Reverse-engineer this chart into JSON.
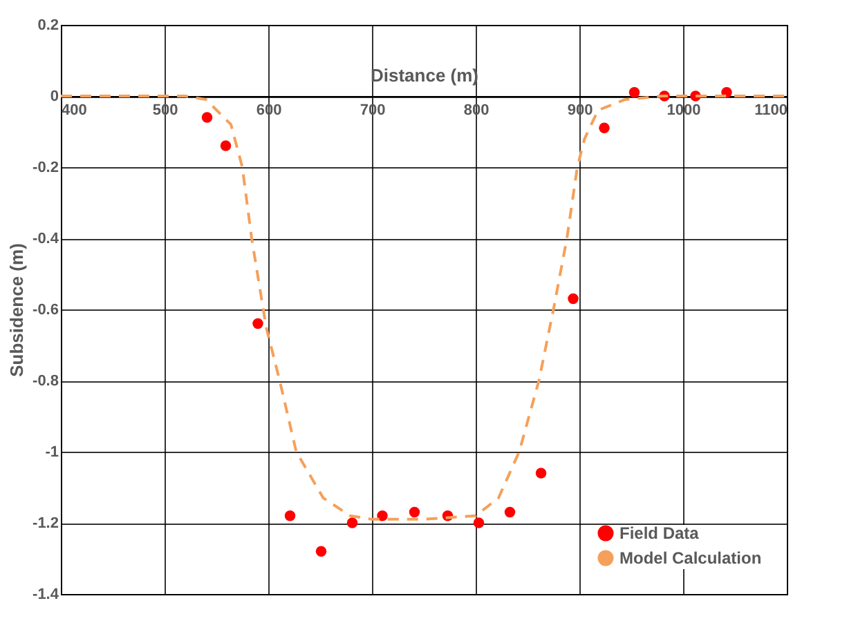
{
  "chart_data": {
    "type": "scatter",
    "xlabel": "Distance (m)",
    "ylabel": "Subsidence (m)",
    "xlim": [
      400,
      1100
    ],
    "xticks": [
      400,
      500,
      600,
      700,
      800,
      900,
      1000,
      1100
    ],
    "ylim": [
      -1.4,
      0.2
    ],
    "yticks": [
      -1.4,
      -1.2,
      -1,
      -0.8,
      -0.6,
      -0.4,
      -0.2,
      0,
      0.2
    ],
    "grid": true,
    "legend": "bottom right",
    "series": [
      {
        "name": "Field Data",
        "marker": "circle",
        "color": "#ff0000",
        "x": [
          541,
          559,
          590,
          621,
          651,
          681,
          710,
          741,
          773,
          803,
          833,
          863,
          894,
          924,
          953,
          982,
          1012,
          1042
        ],
        "values": [
          -0.06,
          -0.14,
          -0.64,
          -1.18,
          -1.28,
          -1.2,
          -1.18,
          -1.17,
          -1.18,
          -1.2,
          -1.17,
          -1.06,
          -0.57,
          -0.09,
          0.01,
          0,
          0,
          0.01
        ]
      },
      {
        "name": "Model Calculation",
        "type": "line",
        "marker": "none",
        "line_style": "dashed",
        "color": "#f5a05a",
        "x": [
          400,
          500,
          520,
          540,
          564,
          575,
          584,
          598,
          611,
          627,
          653,
          679,
          700,
          750,
          800,
          822,
          842,
          861,
          875,
          888,
          898,
          905,
          918,
          944,
          980,
          1100
        ],
        "values": [
          0,
          0,
          0,
          -0.01,
          -0.08,
          -0.2,
          -0.4,
          -0.65,
          -0.8,
          -1.0,
          -1.13,
          -1.18,
          -1.19,
          -1.19,
          -1.18,
          -1.13,
          -1.0,
          -0.8,
          -0.6,
          -0.4,
          -0.2,
          -0.12,
          -0.04,
          -0.01,
          0,
          0
        ]
      }
    ]
  }
}
